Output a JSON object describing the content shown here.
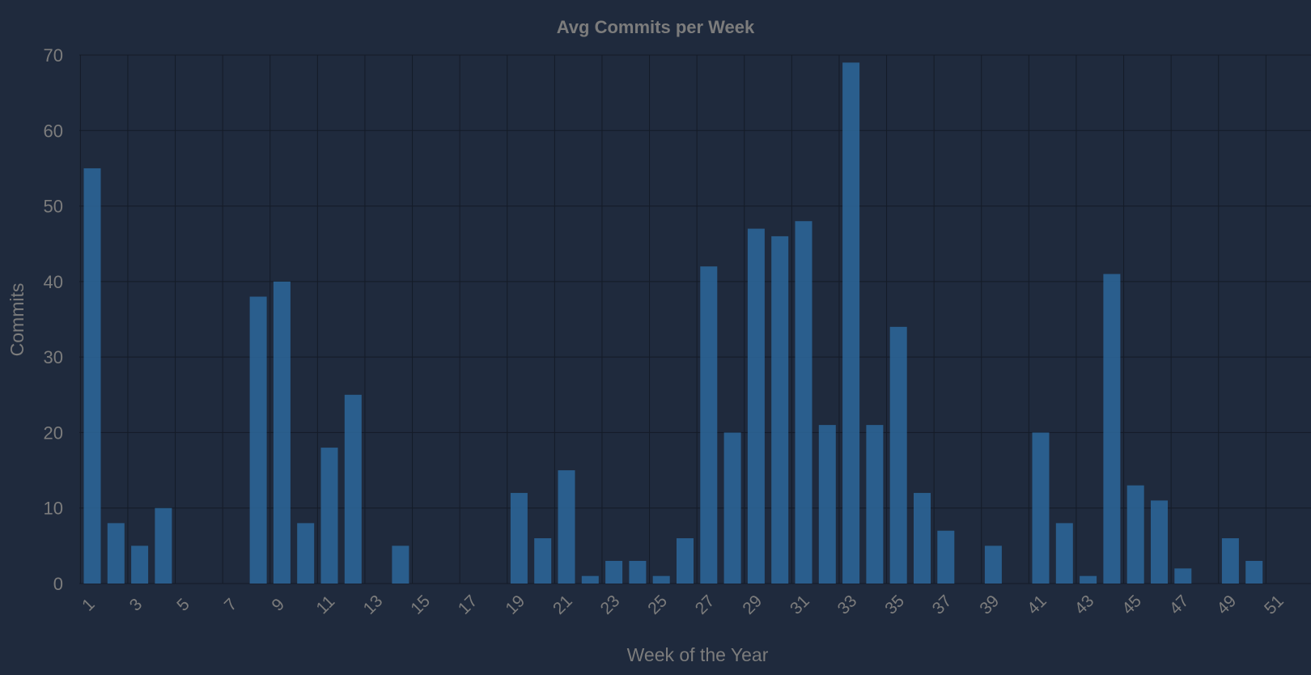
{
  "chart_data": {
    "type": "bar",
    "title": "Avg Commits per Week",
    "xlabel": "Week of the Year",
    "ylabel": "Commits",
    "ylim": [
      0,
      70
    ],
    "yticks": [
      0,
      10,
      20,
      30,
      40,
      50,
      60,
      70
    ],
    "categories": [
      1,
      2,
      3,
      4,
      5,
      6,
      7,
      8,
      9,
      10,
      11,
      12,
      13,
      14,
      15,
      16,
      17,
      18,
      19,
      20,
      21,
      22,
      23,
      24,
      25,
      26,
      27,
      28,
      29,
      30,
      31,
      32,
      33,
      34,
      35,
      36,
      37,
      38,
      39,
      40,
      41,
      42,
      43,
      44,
      45,
      46,
      47,
      48,
      49,
      50,
      51,
      52,
      53
    ],
    "values": [
      55,
      8,
      5,
      10,
      0,
      0,
      0,
      38,
      40,
      8,
      18,
      25,
      0,
      5,
      0,
      0,
      0,
      0,
      12,
      6,
      15,
      1,
      3,
      3,
      1,
      6,
      42,
      20,
      47,
      46,
      48,
      21,
      69,
      21,
      34,
      12,
      7,
      0,
      5,
      0,
      20,
      8,
      1,
      41,
      13,
      11,
      2,
      0,
      6,
      3,
      0,
      0,
      0
    ],
    "grid": true,
    "bar_color": "#2b6496"
  }
}
